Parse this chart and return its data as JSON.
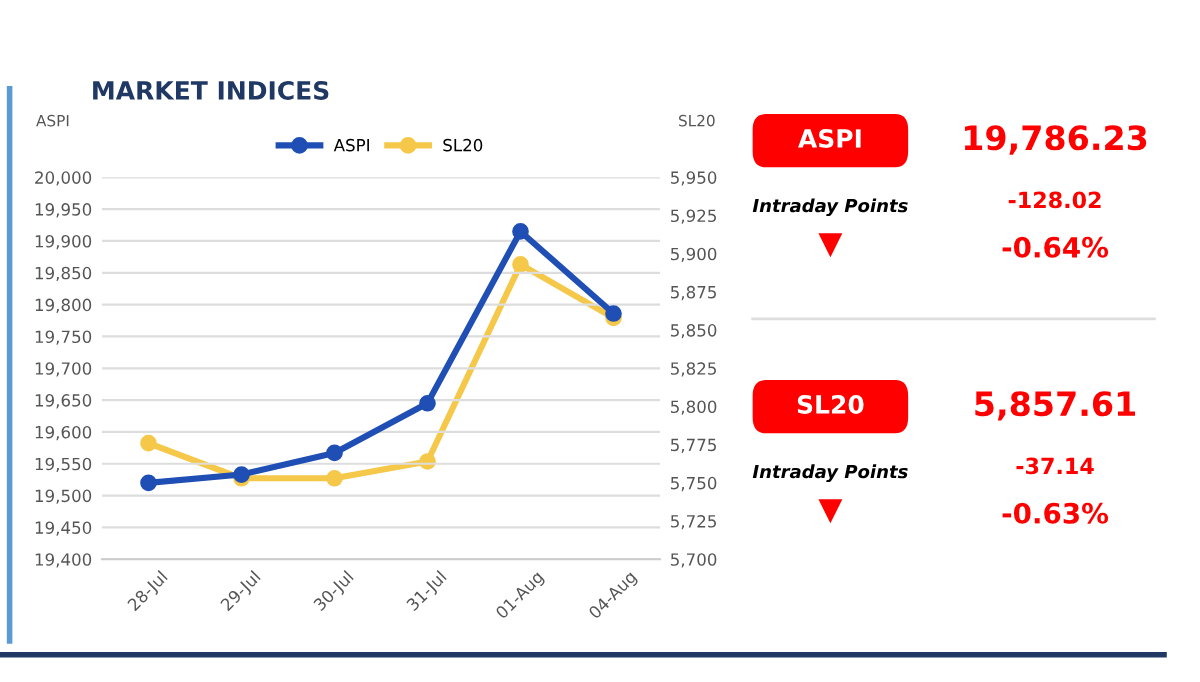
{
  "chart_data": [
    {
      "type": "line",
      "title": "MARKET INDICES",
      "ylabel": "ASPI",
      "y2label": "SL20",
      "categories": [
        "28-Jul",
        "29-Jul",
        "30-Jul",
        "31-Jul",
        "01-Aug",
        "04-Aug"
      ],
      "series": [
        {
          "name": "ASPI",
          "color": "#1f4eb4",
          "values": [
            19520,
            19533,
            19567,
            19645,
            19915,
            19786
          ]
        },
        {
          "name": "SL20",
          "color": "#f5c84a",
          "axis": "y2",
          "values": [
            5776,
            5753,
            5753,
            5764,
            5893,
            5858
          ]
        }
      ],
      "ylim": [
        19400,
        20000
      ],
      "yticks": [
        {
          "value": 19400,
          "label": "19,400"
        },
        {
          "value": 19450,
          "label": "19,450"
        },
        {
          "value": 19500,
          "label": "19,500"
        },
        {
          "value": 19550,
          "label": "19,550"
        },
        {
          "value": 19600,
          "label": "19,600"
        },
        {
          "value": 19650,
          "label": "19,650"
        },
        {
          "value": 19700,
          "label": "19,700"
        },
        {
          "value": 19750,
          "label": "19,750"
        },
        {
          "value": 19800,
          "label": "19,800"
        },
        {
          "value": 19850,
          "label": "19,850"
        },
        {
          "value": 19900,
          "label": "19,900"
        },
        {
          "value": 19950,
          "label": "19,950"
        },
        {
          "value": 20000,
          "label": "20,000"
        }
      ],
      "y2lim": [
        5700,
        5950
      ],
      "y2ticks": [
        {
          "value": 5700,
          "label": "5,700"
        },
        {
          "value": 5725,
          "label": "5,725"
        },
        {
          "value": 5750,
          "label": "5,750"
        },
        {
          "value": 5775,
          "label": "5,775"
        },
        {
          "value": 5800,
          "label": "5,800"
        },
        {
          "value": 5825,
          "label": "5,825"
        },
        {
          "value": 5850,
          "label": "5,850"
        },
        {
          "value": 5875,
          "label": "5,875"
        },
        {
          "value": 5900,
          "label": "5,900"
        },
        {
          "value": 5925,
          "label": "5,925"
        },
        {
          "value": 5950,
          "label": "5,950"
        }
      ],
      "grid": "y",
      "legend": "top",
      "marker": "circle",
      "line_style": "solid"
    },
    {
      "type": "other",
      "annotations": [
        "ASPI",
        "19,786.23",
        "Intraday Points",
        "-128.02",
        "-0.64%",
        "SL20",
        "5,857.61",
        "Intraday Points",
        "-37.14",
        "-0.63%"
      ]
    }
  ]
}
